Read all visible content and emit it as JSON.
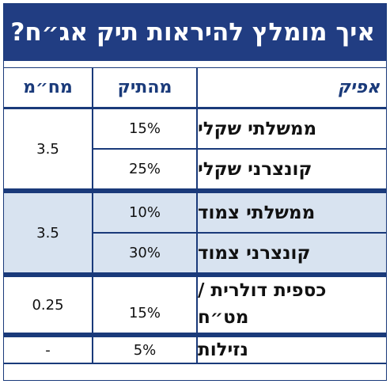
{
  "title": "איך מומלץ להיראות תיק אג״ח?",
  "headers": {
    "asset": "אפיק",
    "weight": "מהתיק",
    "duration": "מח״מ"
  },
  "groups": [
    {
      "duration": "3.5",
      "rows": [
        {
          "name": "ממשלתי שקלי",
          "weight": "15%"
        },
        {
          "name": "קונצרני שקלי",
          "weight": "25%"
        }
      ]
    },
    {
      "duration": "3.5",
      "rows": [
        {
          "name": "ממשלתי צמוד",
          "weight": "10%"
        },
        {
          "name": "קונצרני צמוד",
          "weight": "30%"
        }
      ]
    },
    {
      "duration": "0.25",
      "rows": [
        {
          "name_line1": "כספית דולרית /",
          "name_line2": "מט״ח",
          "weight": "15%"
        }
      ]
    },
    {
      "duration": "-",
      "rows": [
        {
          "name": "נזילות",
          "weight": "5%"
        }
      ]
    }
  ],
  "colors": {
    "title_bg": "#213d82",
    "border": "#1a3a7a",
    "shade": "#d8e3f0"
  }
}
